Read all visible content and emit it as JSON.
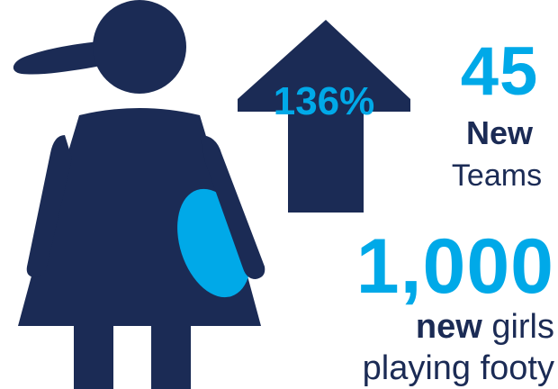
{
  "stats": {
    "growth_percent": "136%",
    "teams_count": "45",
    "teams_bold": "New",
    "teams_text": "Teams",
    "girls_count": "1,000",
    "girls_bold": "new",
    "girls_text1": " girls",
    "girls_text2": "playing footy"
  },
  "colors": {
    "navy": "#1b2b55",
    "accent_blue": "#00a9e8",
    "ball_blue": "#00a9e8"
  },
  "icons": [
    "girl-figure-icon",
    "football-icon",
    "up-arrow-icon"
  ]
}
